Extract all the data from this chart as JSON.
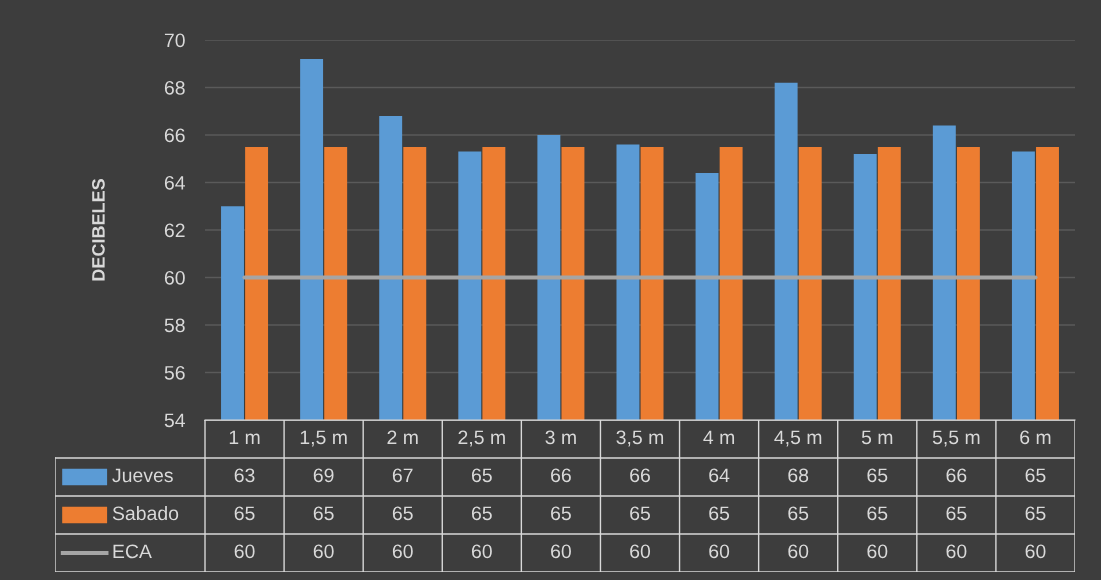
{
  "chart_data": {
    "type": "bar",
    "ylabel": "DECIBELES",
    "categories": [
      "1 m",
      "1,5 m",
      "2 m",
      "2,5 m",
      "3 m",
      "3,5 m",
      "4 m",
      "4,5 m",
      "5 m",
      "5,5 m",
      "6 m"
    ],
    "series": [
      {
        "name": "Jueves",
        "color": "#5b9bd5",
        "values": [
          63.0,
          69.2,
          66.8,
          65.3,
          66.0,
          65.6,
          64.4,
          68.2,
          65.2,
          66.4,
          65.3
        ],
        "value_labels": [
          "63",
          "69",
          "67",
          "65",
          "66",
          "66",
          "64",
          "68",
          "65",
          "66",
          "65"
        ]
      },
      {
        "name": "Sabado",
        "color": "#ed7d31",
        "values": [
          65.5,
          65.5,
          65.5,
          65.5,
          65.5,
          65.5,
          65.5,
          65.5,
          65.5,
          65.5,
          65.5
        ],
        "value_labels": [
          "65",
          "65",
          "65",
          "65",
          "65",
          "65",
          "65",
          "65",
          "65",
          "65",
          "65"
        ]
      },
      {
        "name": "ECA",
        "type": "line",
        "color": "#a5a5a5",
        "values": [
          60,
          60,
          60,
          60,
          60,
          60,
          60,
          60,
          60,
          60,
          60
        ],
        "value_labels": [
          "60",
          "60",
          "60",
          "60",
          "60",
          "60",
          "60",
          "60",
          "60",
          "60",
          "60"
        ]
      }
    ],
    "ylim": [
      54,
      70
    ],
    "yticks": [
      54,
      56,
      58,
      60,
      62,
      64,
      66,
      68,
      70
    ],
    "grid": "y",
    "legend": "bottom"
  }
}
